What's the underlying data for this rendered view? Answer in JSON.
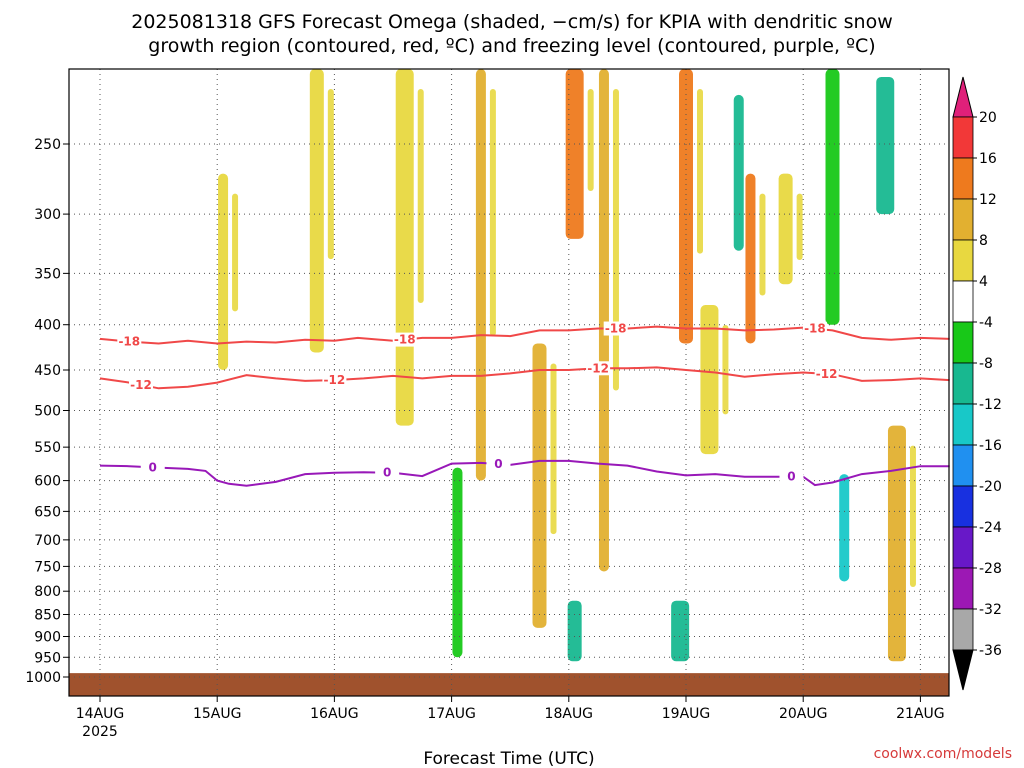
{
  "chart_data": {
    "type": "heatmap",
    "title_line1": "2025081318 GFS Forecast Omega (shaded, −cm/s) for KPIA with dendritic snow",
    "title_line2": "growth region (contoured, red, ºC) and freezing level (contoured, purple, ºC)",
    "xlabel": "Forecast Time (UTC)",
    "ylabel": "",
    "x_ticks": [
      "14AUG",
      "15AUG",
      "16AUG",
      "17AUG",
      "18AUG",
      "19AUG",
      "20AUG",
      "21AUG"
    ],
    "x_year": "2025",
    "x_range_days": [
      0.0,
      7.25
    ],
    "y_ticks": [
      250,
      300,
      350,
      400,
      450,
      500,
      550,
      600,
      650,
      700,
      750,
      800,
      850,
      900,
      950,
      1000
    ],
    "y_range_hpa": [
      200,
      1050
    ],
    "y_log": true,
    "grid": true,
    "colorbar": {
      "labels": [
        "20",
        "16",
        "12",
        "8",
        "4",
        "-4",
        "-8",
        "-12",
        "-16",
        "-20",
        "-24",
        "-28",
        "-32",
        "-36"
      ],
      "colors": [
        "#f23838",
        "#ee7a1e",
        "#e2b030",
        "#e8d840",
        "#ffffff",
        "#18c818",
        "#18b890",
        "#18c8c8",
        "#2090f0",
        "#1830e0",
        "#6818c8",
        "#9c18b4",
        "#a8a8a8"
      ],
      "top_arrow_color": "#e0207a",
      "bottom_arrow_color": "#000000"
    },
    "contours": [
      {
        "label": "-18",
        "color": "#f04848",
        "points": [
          [
            0.0,
            415
          ],
          [
            0.25,
            418
          ],
          [
            0.5,
            420
          ],
          [
            0.75,
            417
          ],
          [
            1.0,
            420
          ],
          [
            1.25,
            418
          ],
          [
            1.5,
            419
          ],
          [
            1.75,
            416
          ],
          [
            2.0,
            417
          ],
          [
            2.2,
            414
          ],
          [
            2.5,
            417
          ],
          [
            2.75,
            414
          ],
          [
            3.0,
            414
          ],
          [
            3.25,
            411
          ],
          [
            3.5,
            412
          ],
          [
            3.75,
            406
          ],
          [
            4.0,
            406
          ],
          [
            4.25,
            404
          ],
          [
            4.5,
            404
          ],
          [
            4.75,
            402
          ],
          [
            5.0,
            404
          ],
          [
            5.25,
            404
          ],
          [
            5.5,
            406
          ],
          [
            5.75,
            405
          ],
          [
            6.0,
            403
          ],
          [
            6.25,
            406
          ],
          [
            6.5,
            414
          ],
          [
            6.75,
            416
          ],
          [
            7.0,
            414
          ],
          [
            7.25,
            415
          ]
        ],
        "labels_at": [
          0.25,
          2.6,
          4.4,
          6.1
        ]
      },
      {
        "label": "-12",
        "color": "#f04848",
        "points": [
          [
            0.0,
            460
          ],
          [
            0.25,
            465
          ],
          [
            0.5,
            472
          ],
          [
            0.75,
            470
          ],
          [
            1.0,
            465
          ],
          [
            1.25,
            456
          ],
          [
            1.5,
            460
          ],
          [
            1.75,
            463
          ],
          [
            2.0,
            462
          ],
          [
            2.25,
            460
          ],
          [
            2.5,
            457
          ],
          [
            2.75,
            460
          ],
          [
            3.0,
            457
          ],
          [
            3.25,
            457
          ],
          [
            3.5,
            454
          ],
          [
            3.75,
            450
          ],
          [
            4.0,
            450
          ],
          [
            4.25,
            448
          ],
          [
            4.5,
            448
          ],
          [
            4.75,
            447
          ],
          [
            5.0,
            450
          ],
          [
            5.25,
            453
          ],
          [
            5.5,
            458
          ],
          [
            5.75,
            455
          ],
          [
            6.0,
            453
          ],
          [
            6.25,
            455
          ],
          [
            6.5,
            463
          ],
          [
            6.75,
            462
          ],
          [
            7.0,
            460
          ],
          [
            7.25,
            462
          ]
        ],
        "labels_at": [
          0.35,
          2.0,
          4.25,
          6.2
        ]
      },
      {
        "label": "0",
        "color": "#9818b8",
        "points": [
          [
            0.0,
            577
          ],
          [
            0.25,
            578
          ],
          [
            0.5,
            580
          ],
          [
            0.75,
            582
          ],
          [
            0.9,
            585
          ],
          [
            1.0,
            600
          ],
          [
            1.1,
            605
          ],
          [
            1.25,
            608
          ],
          [
            1.5,
            602
          ],
          [
            1.75,
            590
          ],
          [
            2.0,
            588
          ],
          [
            2.25,
            587
          ],
          [
            2.5,
            588
          ],
          [
            2.75,
            593
          ],
          [
            3.0,
            574
          ],
          [
            3.25,
            573
          ],
          [
            3.5,
            576
          ],
          [
            3.75,
            570
          ],
          [
            4.0,
            570
          ],
          [
            4.25,
            574
          ],
          [
            4.5,
            577
          ],
          [
            4.75,
            586
          ],
          [
            5.0,
            592
          ],
          [
            5.25,
            590
          ],
          [
            5.5,
            594
          ],
          [
            5.75,
            594
          ],
          [
            6.0,
            594
          ],
          [
            6.1,
            607
          ],
          [
            6.25,
            603
          ],
          [
            6.5,
            590
          ],
          [
            6.75,
            585
          ],
          [
            7.0,
            578
          ],
          [
            7.25,
            578
          ]
        ],
        "labels_at": [
          0.45,
          2.45,
          3.4,
          5.9
        ]
      }
    ],
    "shaded_regions": [
      {
        "x": 1.05,
        "p_top": 270,
        "p_bottom": 450,
        "value": 6
      },
      {
        "x": 1.85,
        "p_top": 200,
        "p_bottom": 430,
        "value": 6
      },
      {
        "x": 2.6,
        "p_top": 200,
        "p_bottom": 520,
        "value": 6
      },
      {
        "x": 3.25,
        "p_top": 200,
        "p_bottom": 600,
        "value": 8
      },
      {
        "x": 3.75,
        "p_top": 420,
        "p_bottom": 880,
        "value": 10
      },
      {
        "x": 4.05,
        "p_top": 200,
        "p_bottom": 320,
        "value": 14
      },
      {
        "x": 4.3,
        "p_top": 200,
        "p_bottom": 760,
        "value": 8
      },
      {
        "x": 5.0,
        "p_top": 200,
        "p_bottom": 420,
        "value": 14
      },
      {
        "x": 5.2,
        "p_top": 380,
        "p_bottom": 560,
        "value": 6
      },
      {
        "x": 5.55,
        "p_top": 270,
        "p_bottom": 420,
        "value": 14
      },
      {
        "x": 5.85,
        "p_top": 270,
        "p_bottom": 360,
        "value": 6
      },
      {
        "x": 6.8,
        "p_top": 520,
        "p_bottom": 960,
        "value": 10
      },
      {
        "x": 3.05,
        "p_top": 580,
        "p_bottom": 950,
        "value": -6
      },
      {
        "x": 4.05,
        "p_top": 820,
        "p_bottom": 960,
        "value": -10
      },
      {
        "x": 4.95,
        "p_top": 820,
        "p_bottom": 960,
        "value": -8
      },
      {
        "x": 5.45,
        "p_top": 220,
        "p_bottom": 330,
        "value": -10
      },
      {
        "x": 6.25,
        "p_top": 200,
        "p_bottom": 400,
        "value": -6
      },
      {
        "x": 6.7,
        "p_top": 210,
        "p_bottom": 300,
        "value": -8
      },
      {
        "x": 6.35,
        "p_top": 590,
        "p_bottom": 780,
        "value": -12
      }
    ],
    "surface": {
      "p_top": 990,
      "color": "#a0522d"
    }
  },
  "credit": "coolwx.com/models"
}
